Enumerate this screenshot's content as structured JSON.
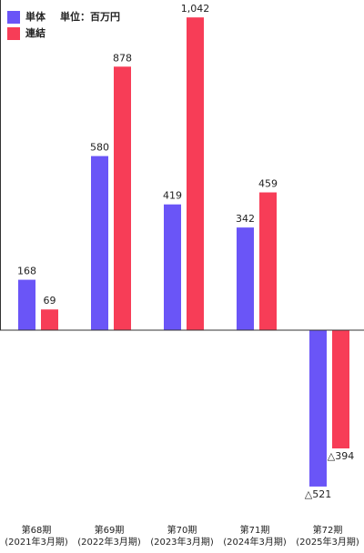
{
  "chart_data": {
    "type": "bar",
    "annotation": "単位：百万円",
    "categories": [
      [
        "第68期",
        "(2021年3月期)"
      ],
      [
        "第69期",
        "(2022年3月期)"
      ],
      [
        "第70期",
        "(2023年3月期)"
      ],
      [
        "第71期",
        "(2024年3月期)"
      ],
      [
        "第72期",
        "(2025年3月期)"
      ]
    ],
    "series": [
      {
        "name": "単体",
        "color": "#6a55f7",
        "values": [
          168,
          580,
          419,
          342,
          -521
        ],
        "value_labels": [
          "168",
          "580",
          "419",
          "342",
          "△521"
        ]
      },
      {
        "name": "連結",
        "color": "#f73d57",
        "values": [
          69,
          878,
          1042,
          459,
          -394
        ],
        "value_labels": [
          "69",
          "878",
          "1,042",
          "459",
          "△394"
        ]
      }
    ],
    "ylim": [
      -600,
      1100
    ],
    "legend": "top-left"
  }
}
